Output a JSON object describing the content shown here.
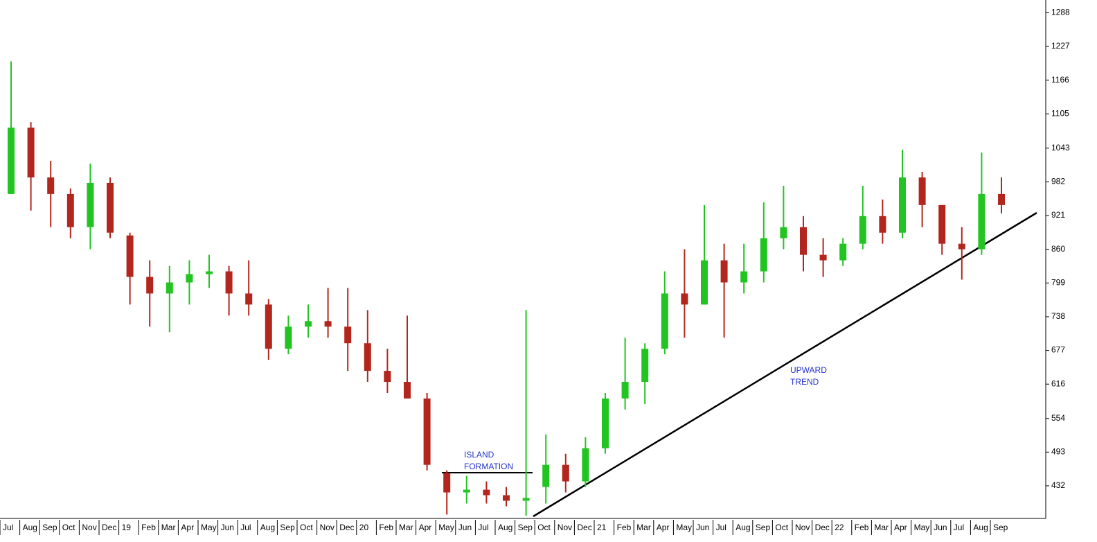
{
  "chart_data": {
    "type": "candlestick",
    "categories": [
      "Jul",
      "Aug",
      "Sep",
      "Oct",
      "Nov",
      "Dec",
      "19",
      "Feb",
      "Mar",
      "Apr",
      "May",
      "Jun",
      "Jul",
      "Aug",
      "Sep",
      "Oct",
      "Nov",
      "Dec",
      "20",
      "Feb",
      "Mar",
      "Apr",
      "May",
      "Jun",
      "Jul",
      "Aug",
      "Sep",
      "Oct",
      "Nov",
      "Dec",
      "21",
      "Feb",
      "Mar",
      "Apr",
      "May",
      "Jun",
      "Jul",
      "Aug",
      "Sep",
      "Oct",
      "Nov",
      "Dec",
      "22",
      "Feb",
      "Mar",
      "Apr",
      "May",
      "Jun",
      "Jul",
      "Aug",
      "Sep"
    ],
    "open": [
      960,
      1080,
      990,
      960,
      900,
      980,
      885,
      810,
      780,
      800,
      815,
      820,
      780,
      760,
      680,
      720,
      730,
      720,
      690,
      640,
      620,
      590,
      455,
      420,
      425,
      415,
      405,
      430,
      470,
      440,
      500,
      590,
      620,
      680,
      780,
      760,
      840,
      800,
      820,
      880,
      900,
      850,
      840,
      870,
      920,
      890,
      990,
      940,
      870,
      860,
      960
    ],
    "high": [
      1200,
      1090,
      1020,
      970,
      1015,
      990,
      890,
      840,
      830,
      840,
      850,
      830,
      840,
      770,
      740,
      760,
      790,
      790,
      750,
      680,
      740,
      600,
      460,
      450,
      440,
      430,
      750,
      525,
      490,
      520,
      600,
      700,
      690,
      820,
      860,
      940,
      870,
      870,
      945,
      975,
      920,
      880,
      880,
      975,
      950,
      1040,
      1000,
      940,
      900,
      1035,
      990
    ],
    "low": [
      960,
      930,
      900,
      880,
      860,
      880,
      760,
      720,
      710,
      760,
      790,
      740,
      740,
      660,
      670,
      700,
      700,
      640,
      620,
      600,
      590,
      460,
      380,
      400,
      400,
      395,
      378,
      400,
      420,
      430,
      490,
      570,
      580,
      670,
      700,
      760,
      700,
      780,
      800,
      860,
      820,
      810,
      830,
      860,
      870,
      880,
      900,
      850,
      805,
      850,
      925
    ],
    "close": [
      1080,
      990,
      960,
      900,
      980,
      890,
      810,
      780,
      800,
      815,
      820,
      780,
      760,
      680,
      720,
      730,
      720,
      690,
      640,
      620,
      590,
      470,
      420,
      425,
      415,
      405,
      410,
      470,
      440,
      500,
      590,
      620,
      680,
      780,
      760,
      840,
      800,
      820,
      880,
      900,
      850,
      840,
      870,
      920,
      890,
      990,
      940,
      870,
      860,
      960,
      940
    ],
    "up_color": "#22c422",
    "down_color": "#b3261e",
    "ylim": [
      373,
      1311
    ],
    "yticks": [
      432,
      493,
      554,
      616,
      677,
      738,
      799,
      860,
      921,
      982,
      1043,
      1105,
      1166,
      1227,
      1288
    ],
    "annotations": [
      [
        "ISLAND",
        "FORMATION"
      ],
      [
        "UPWARD",
        "TREND"
      ]
    ]
  }
}
